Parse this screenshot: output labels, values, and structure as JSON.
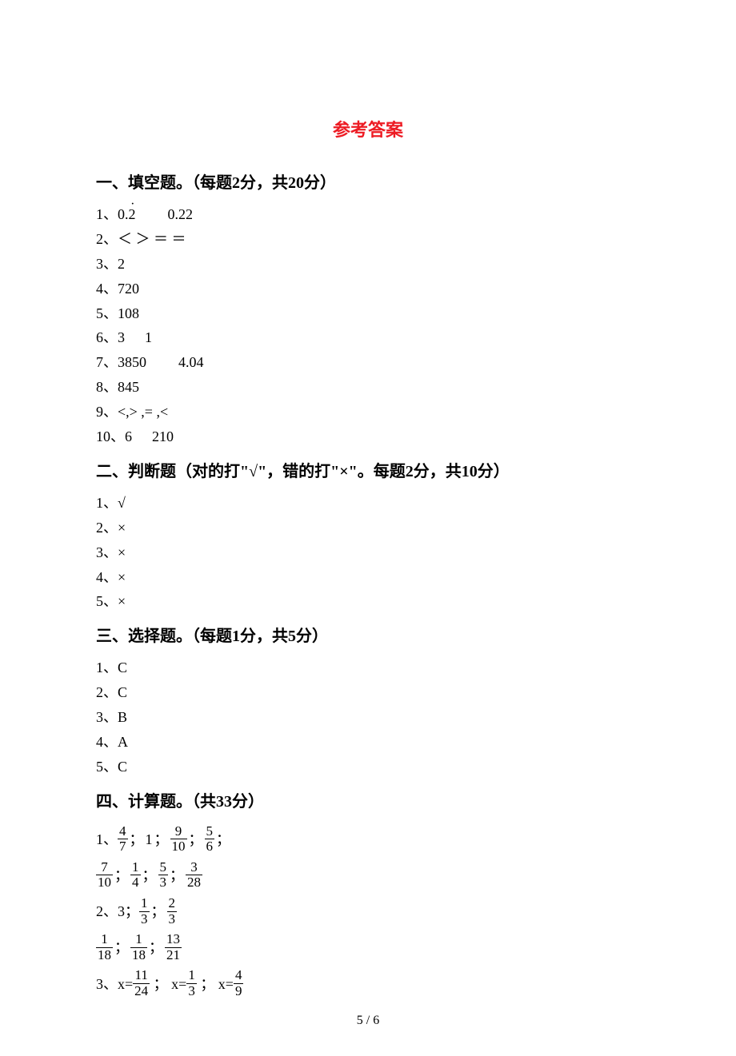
{
  "title": "参考答案",
  "sections": {
    "s1": {
      "header": "一、填空题。（每题2分，共20分）",
      "a1_prefix": "1、",
      "a1_v1": "0.2",
      "a1_v2": "0.22",
      "a2": "2、＜ ＞ ＝ ＝",
      "a3": "3、2",
      "a4": "4、720",
      "a5": "5、108",
      "a6_prefix": "6、3",
      "a6_v2": "1",
      "a7_prefix": "7、3850",
      "a7_v2": "4.04",
      "a8": "8、845",
      "a9": "9、<,> ,= ,<",
      "a10_prefix": "10、6",
      "a10_v2": "210"
    },
    "s2": {
      "header": "二、判断题（对的打\"√\"，错的打\"×\"。每题2分，共10分）",
      "a1": "1、√",
      "a2": "2、×",
      "a3": "3、×",
      "a4": "4、×",
      "a5": "5、×"
    },
    "s3": {
      "header": "三、选择题。（每题1分，共5分）",
      "a1": "1、C",
      "a2": "2、C",
      "a3": "3、B",
      "a4": "4、A",
      "a5": "5、C"
    },
    "s4": {
      "header": "四、计算题。（共33分）",
      "q1": {
        "prefix": "1、",
        "f1n": "4",
        "f1d": "7",
        "v2": "1",
        "f3n": "9",
        "f3d": "10",
        "f4n": "5",
        "f4d": "6",
        "f5n": "7",
        "f5d": "10",
        "f6n": "1",
        "f6d": "4",
        "f7n": "5",
        "f7d": "3",
        "f8n": "3",
        "f8d": "28"
      },
      "q2": {
        "prefix": "2、3；",
        "f1n": "1",
        "f1d": "3",
        "f2n": "2",
        "f2d": "3",
        "f3n": "1",
        "f3d": "18",
        "f4n": "1",
        "f4d": "18",
        "f5n": "13",
        "f5d": "21"
      },
      "q3": {
        "prefix": "3、x=",
        "f1n": "11",
        "f1d": "24",
        "mid2": " ； x=",
        "f2n": "1",
        "f2d": "3",
        "mid3": " ； x=",
        "f3n": "4",
        "f3d": "9"
      }
    }
  },
  "page_number": "5 / 6",
  "colors": {
    "title": "#ed1c24",
    "text": "#000000",
    "background": "#ffffff"
  }
}
